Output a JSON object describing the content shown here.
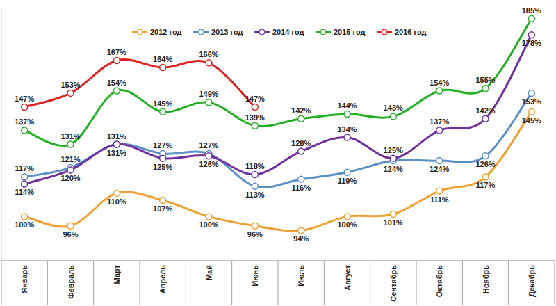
{
  "chart_data": {
    "type": "line",
    "categories": [
      "Январь",
      "Февраль",
      "Март",
      "Апрель",
      "Май",
      "Июнь",
      "Июль",
      "Август",
      "Сентябрь",
      "Октябрь",
      "Ноябрь",
      "Декабрь"
    ],
    "series": [
      {
        "name": "2012 год",
        "color": "#f0a030",
        "values": [
          100,
          96,
          110,
          107,
          100,
          96,
          94,
          100,
          101,
          111,
          117,
          145
        ],
        "value_labels": [
          "100%",
          "96%",
          "110%",
          "107%",
          "100%",
          "96%",
          "94%",
          "100%",
          "101%",
          "111%",
          "117%",
          "145%"
        ]
      },
      {
        "name": "2013 год",
        "color": "#5b8fc7",
        "values": [
          117,
          121,
          131,
          127,
          127,
          113,
          116,
          119,
          124,
          124,
          126,
          153
        ],
        "value_labels": [
          "117%",
          "121%",
          "131%",
          "127%",
          "127%",
          "113%",
          "116%",
          "119%",
          "124%",
          "124%",
          "126%",
          "153%"
        ]
      },
      {
        "name": "2014 год",
        "color": "#7030a0",
        "values": [
          114,
          120,
          131,
          125,
          126,
          118,
          128,
          134,
          125,
          137,
          142,
          178
        ],
        "value_labels": [
          "114%",
          "120%",
          "131%",
          "125%",
          "126%",
          "118%",
          "128%",
          "134%",
          "125%",
          "137%",
          "142%",
          "178%"
        ]
      },
      {
        "name": "2015 год",
        "color": "#22b022",
        "values": [
          137,
          131,
          154,
          145,
          149,
          139,
          142,
          144,
          143,
          154,
          155,
          185
        ],
        "value_labels": [
          "137%",
          "131%",
          "154%",
          "145%",
          "149%",
          "139%",
          "142%",
          "144%",
          "143%",
          "154%",
          "155%",
          "185%"
        ]
      },
      {
        "name": "2016 год",
        "color": "#e02020",
        "values": [
          147,
          153,
          167,
          164,
          166,
          147,
          null,
          null,
          null,
          null,
          null,
          null
        ],
        "value_labels": [
          "147%",
          "153%",
          "167%",
          "164%",
          "166%",
          "147%",
          null,
          null,
          null,
          null,
          null,
          null
        ]
      }
    ],
    "ylim": [
      81,
      190
    ],
    "marker": "circle",
    "line_style": "solid",
    "data_labels": true,
    "tick_labels": "x",
    "grid": false,
    "legend": "top"
  }
}
